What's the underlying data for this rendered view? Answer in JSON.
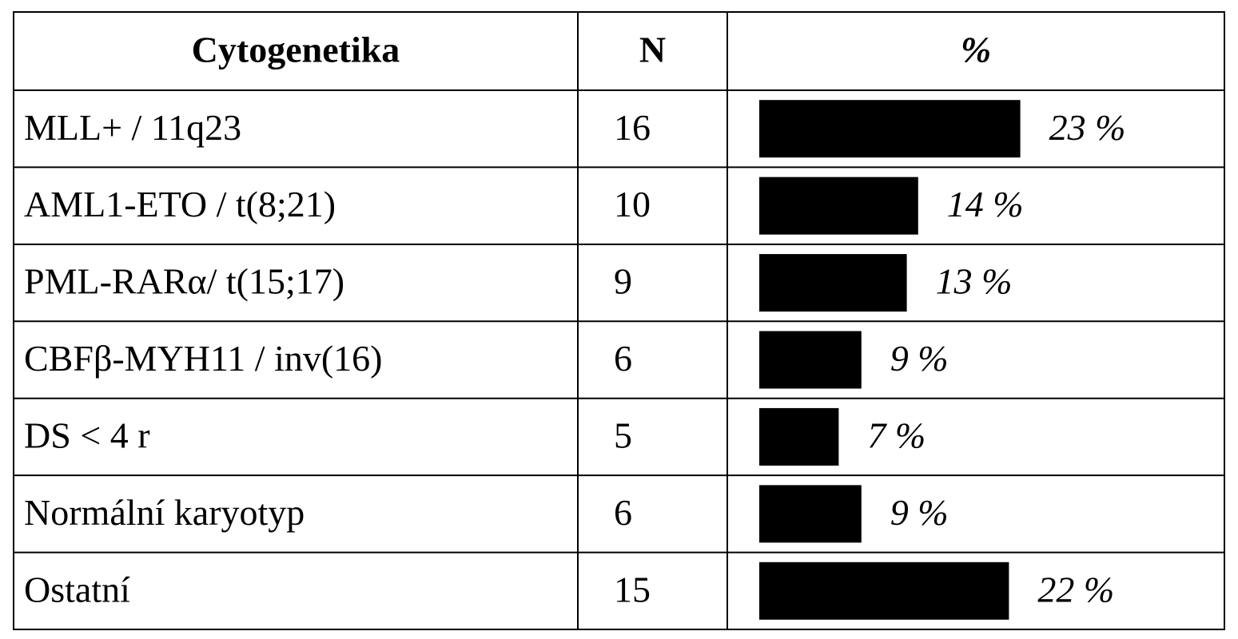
{
  "table": {
    "header": [
      "Cytogenetika",
      "N",
      "%"
    ],
    "rows": [
      {
        "label": "MLL+ / 11q23",
        "n": "16",
        "percent": 23,
        "percent_label": "23 %"
      },
      {
        "label": "AML1-ETO / t(8;21)",
        "n": "10",
        "percent": 14,
        "percent_label": "14 %"
      },
      {
        "label": "PML-RARα/ t(15;17)",
        "n": "9",
        "percent": 13,
        "percent_label": "13 %"
      },
      {
        "label": "CBFβ-MYH11 / inv(16)",
        "n": "6",
        "percent": 9,
        "percent_label": "9 %"
      },
      {
        "label": "DS < 4 r",
        "n": "5",
        "percent": 7,
        "percent_label": "7 %"
      },
      {
        "label": "Normální karyotyp",
        "n": "6",
        "percent": 9,
        "percent_label": "9 %"
      },
      {
        "label": "Ostatní",
        "n": "15",
        "percent": 22,
        "percent_label": "22 %"
      }
    ]
  }
}
